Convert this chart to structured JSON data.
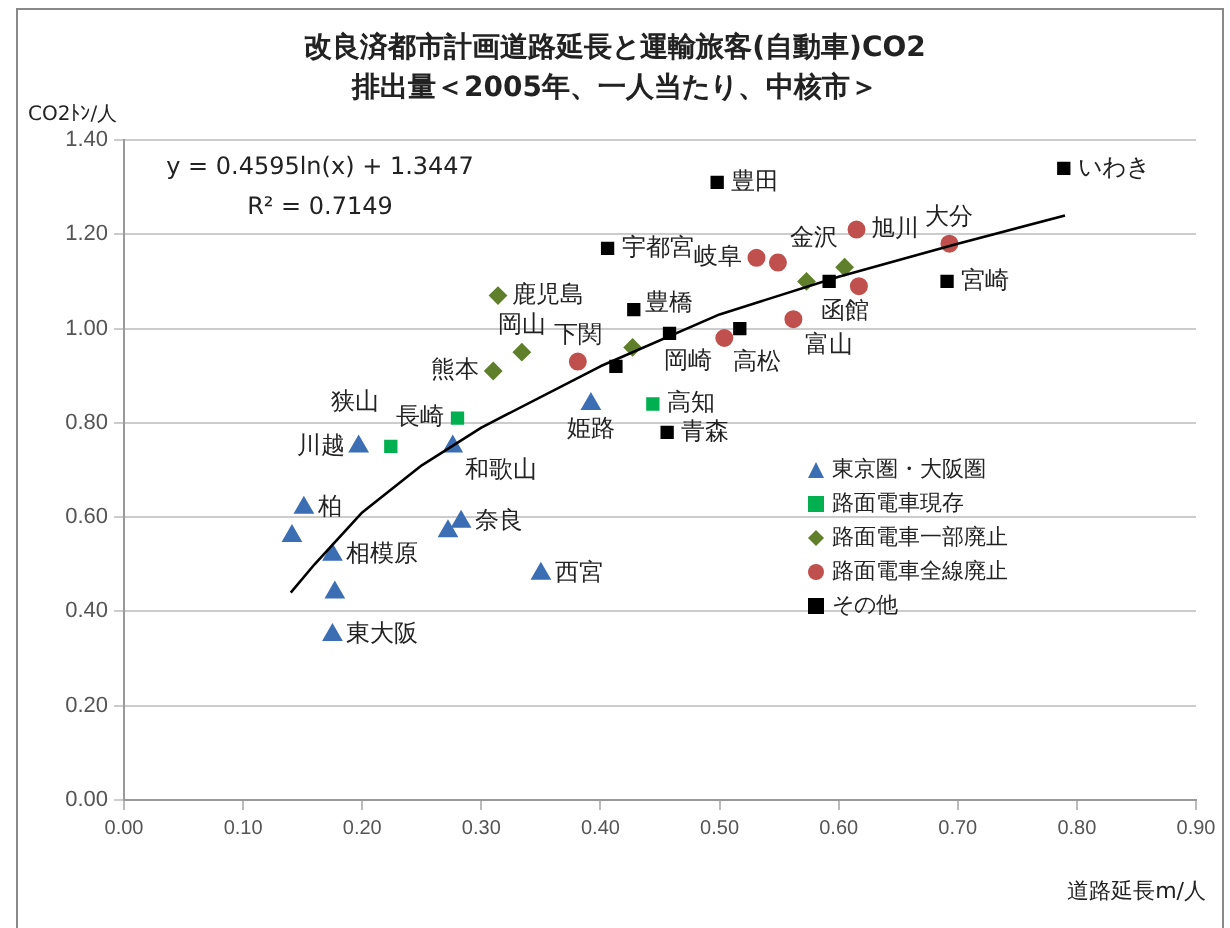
{
  "chart_data": {
    "type": "scatter",
    "title": "改良済都市計画道路延長と運輸旅客(自動車)CO2\n排出量＜2005年、一人当たり、中核市＞",
    "xlabel": "道路延長m/人",
    "ylabel": "CO2ﾄﾝ/人",
    "xlim": [
      0,
      0.9
    ],
    "xticks": [
      {
        "value": 0,
        "label": "0.00"
      },
      {
        "value": 0.1,
        "label": "0.10"
      },
      {
        "value": 0.2,
        "label": "0.20"
      },
      {
        "value": 0.3,
        "label": "0.30"
      },
      {
        "value": 0.4,
        "label": "0.40"
      },
      {
        "value": 0.5,
        "label": "0.50"
      },
      {
        "value": 0.6,
        "label": "0.60"
      },
      {
        "value": 0.7,
        "label": "0.70"
      },
      {
        "value": 0.8,
        "label": "0.80"
      },
      {
        "value": 0.9,
        "label": "0.90"
      }
    ],
    "ylim": [
      0,
      1.4
    ],
    "yticks": [
      {
        "value": 0,
        "label": "0.00"
      },
      {
        "value": 0.2,
        "label": "0.20"
      },
      {
        "value": 0.4,
        "label": "0.40"
      },
      {
        "value": 0.6,
        "label": "0.60"
      },
      {
        "value": 0.8,
        "label": "0.80"
      },
      {
        "value": 1,
        "label": "1.00"
      },
      {
        "value": 1.2,
        "label": "1.20"
      },
      {
        "value": 1.4,
        "label": "1.40"
      }
    ],
    "grid": "y",
    "legend": "bottom right",
    "series": [
      {
        "name": "東京圏・大阪圏",
        "marker": "triangle",
        "color": "#3c6eb4",
        "x": [
          0.151,
          0.141,
          0.175,
          0.177,
          0.175,
          0.197,
          0.276,
          0.283,
          0.272,
          0.35,
          0.392
        ],
        "values": [
          0.62,
          0.56,
          0.52,
          0.44,
          0.35,
          0.75,
          0.75,
          0.59,
          0.57,
          0.48,
          0.84
        ]
      },
      {
        "name": "路面電車現存",
        "marker": "square",
        "color": "#00b050",
        "x": [
          0.28,
          0.224,
          0.444
        ],
        "values": [
          0.81,
          0.75,
          0.84
        ]
      },
      {
        "name": "路面電車一部廃止",
        "marker": "diamond",
        "color": "#5f7f2a",
        "x": [
          0.314,
          0.334,
          0.31,
          0.427,
          0.573,
          0.605
        ],
        "values": [
          1.07,
          0.95,
          0.91,
          0.96,
          1.1,
          1.13
        ]
      },
      {
        "name": "路面電車全線廃止",
        "marker": "circle",
        "color": "#c0504d",
        "x": [
          0.381,
          0.531,
          0.549,
          0.615,
          0.693,
          0.617,
          0.562,
          0.504
        ],
        "values": [
          0.93,
          1.15,
          1.14,
          1.21,
          1.18,
          1.09,
          1.02,
          0.98
        ]
      },
      {
        "name": "その他",
        "marker": "square",
        "color": "#000000",
        "x": [
          0.498,
          0.789,
          0.406,
          0.428,
          0.458,
          0.413,
          0.456,
          0.517,
          0.592,
          0.691
        ],
        "values": [
          1.31,
          1.34,
          1.17,
          1.04,
          0.99,
          0.92,
          0.78,
          1.0,
          1.1,
          1.1
        ]
      },
      {
        "type": "line",
        "marker": "none",
        "color": "#000000",
        "x": [
          0.14,
          0.16,
          0.2,
          0.25,
          0.3,
          0.4,
          0.5,
          0.6,
          0.7,
          0.79
        ],
        "values": [
          0.44,
          0.5,
          0.61,
          0.71,
          0.79,
          0.92,
          1.03,
          1.11,
          1.18,
          1.24
        ]
      }
    ],
    "annotations": [
      "y = 0.4595ln(x) + 1.3447",
      "R² = 0.7149",
      {
        "text": "豊田",
        "x": 0.498,
        "y": 1.31
      },
      {
        "text": "いわき",
        "x": 0.789,
        "y": 1.34
      },
      {
        "text": "旭川",
        "x": 0.615,
        "y": 1.21
      },
      {
        "text": "宇都宮",
        "x": 0.406,
        "y": 1.17
      },
      {
        "text": "岐阜",
        "x": 0.531,
        "y": 1.15
      },
      {
        "text": "金沢",
        "x": 0.549,
        "y": 1.14
      },
      {
        "text": "函館",
        "x": 0.605,
        "y": 1.13
      },
      {
        "text": "大分",
        "x": 0.693,
        "y": 1.18
      },
      {
        "text": "宮崎",
        "x": 0.691,
        "y": 1.1
      },
      {
        "text": "富山",
        "x": 0.592,
        "y": 1.1
      },
      {
        "text": "高松",
        "x": 0.562,
        "y": 1.02
      },
      {
        "text": "岡崎",
        "x": 0.504,
        "y": 0.98
      },
      {
        "text": "高知",
        "x": 0.444,
        "y": 0.84
      },
      {
        "text": "青森",
        "x": 0.456,
        "y": 0.78
      },
      {
        "text": "姫路",
        "x": 0.392,
        "y": 0.84
      },
      {
        "text": "下関",
        "x": 0.381,
        "y": 0.93
      },
      {
        "text": "豊橋",
        "x": 0.427,
        "y": 0.96
      },
      {
        "text": "鹿児島",
        "x": 0.314,
        "y": 1.07
      },
      {
        "text": "岡山",
        "x": 0.334,
        "y": 0.95
      },
      {
        "text": "熊本",
        "x": 0.31,
        "y": 0.91
      },
      {
        "text": "長崎",
        "x": 0.28,
        "y": 0.81
      },
      {
        "text": "川越",
        "x": 0.197,
        "y": 0.75
      },
      {
        "text": "狭山",
        "x": 0.224,
        "y": 0.75
      },
      {
        "text": "和歌山",
        "x": 0.276,
        "y": 0.75
      },
      {
        "text": "柏",
        "x": 0.151,
        "y": 0.62
      },
      {
        "text": "相模原",
        "x": 0.175,
        "y": 0.52
      },
      {
        "text": "東大阪",
        "x": 0.175,
        "y": 0.35
      },
      {
        "text": "奈良",
        "x": 0.283,
        "y": 0.59
      },
      {
        "text": "西宮",
        "x": 0.35,
        "y": 0.48
      }
    ]
  }
}
